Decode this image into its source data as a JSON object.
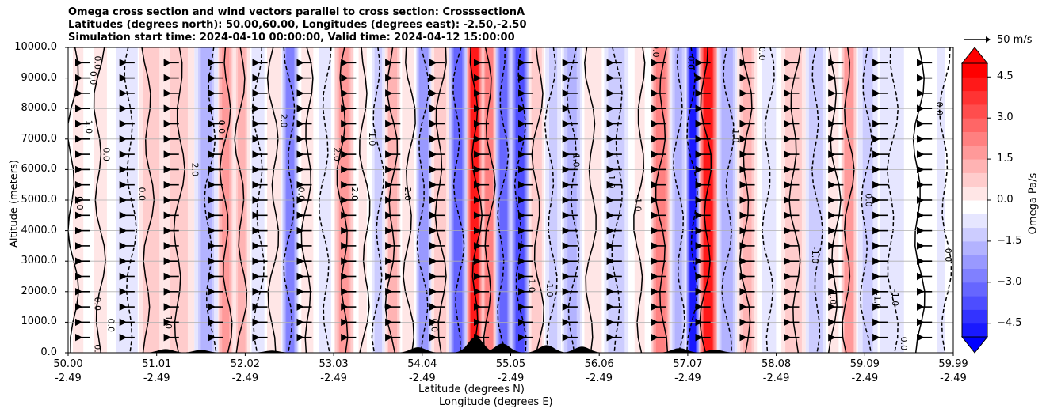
{
  "chart_data": {
    "type": "heatmap",
    "title_lines": [
      "Omega cross section and wind vectors parallel to cross section: CrosssectionA",
      "Latitudes (degrees north): 50.00,60.00, Longitudes (degrees east): -2.50,-2.50",
      "Simulation start time: 2024-04-10 00:00:00, Valid time: 2024-04-12 15:00:00"
    ],
    "ylabel": "Altitude (meters)",
    "xlabel_lat": "Latitude (degrees N)",
    "xlabel_lon": "Longitude (degrees E)",
    "ylim": [
      0,
      10000
    ],
    "yticks": [
      "0.0",
      "1000.0",
      "2000.0",
      "3000.0",
      "4000.0",
      "5000.0",
      "6000.0",
      "7000.0",
      "8000.0",
      "9000.0",
      "10000.0"
    ],
    "xticks_lat": [
      "50.00",
      "51.01",
      "52.02",
      "53.03",
      "54.04",
      "55.05",
      "56.06",
      "57.07",
      "58.08",
      "59.09",
      "59.99"
    ],
    "xticks_lon": [
      "-2.49",
      "-2.49",
      "-2.49",
      "-2.49",
      "-2.49",
      "-2.49",
      "-2.49",
      "-2.49",
      "-2.49",
      "-2.49",
      "-2.49"
    ],
    "xlim": [
      50.0,
      59.99
    ],
    "colorbar": {
      "label": "Omega Pa/s",
      "range": [
        -5.0,
        5.0
      ],
      "ticks": [
        "4.5",
        "3.0",
        "1.5",
        "0.0",
        "−1.5",
        "−3.0",
        "−4.5"
      ],
      "tick_values": [
        4.5,
        3.0,
        1.5,
        0.0,
        -1.5,
        -3.0,
        -4.5
      ],
      "levels": 20,
      "colormap": "bwr"
    },
    "quiver_key": {
      "label": "50 m/s",
      "speed": 50
    },
    "omega_columns": [
      {
        "lat": 50.05,
        "value": 0.4
      },
      {
        "lat": 50.35,
        "value": 0.3
      },
      {
        "lat": 50.7,
        "value": -0.8
      },
      {
        "lat": 50.9,
        "value": 1.2
      },
      {
        "lat": 51.25,
        "value": 1.0
      },
      {
        "lat": 51.6,
        "value": -1.5
      },
      {
        "lat": 51.78,
        "value": 2.2
      },
      {
        "lat": 51.95,
        "value": 1.5
      },
      {
        "lat": 52.15,
        "value": -0.6
      },
      {
        "lat": 52.32,
        "value": 0.8
      },
      {
        "lat": 52.5,
        "value": -2.6
      },
      {
        "lat": 52.7,
        "value": 0.5
      },
      {
        "lat": 52.9,
        "value": -0.5
      },
      {
        "lat": 53.1,
        "value": 2.0
      },
      {
        "lat": 53.35,
        "value": 0.3
      },
      {
        "lat": 53.5,
        "value": -1.2
      },
      {
        "lat": 53.65,
        "value": 1.8
      },
      {
        "lat": 53.85,
        "value": 0.6
      },
      {
        "lat": 54.0,
        "value": -2.5
      },
      {
        "lat": 54.2,
        "value": 1.4
      },
      {
        "lat": 54.4,
        "value": -3.2
      },
      {
        "lat": 54.6,
        "value": 5.0
      },
      {
        "lat": 54.75,
        "value": 3.0
      },
      {
        "lat": 54.9,
        "value": -3.5
      },
      {
        "lat": 55.1,
        "value": -4.2
      },
      {
        "lat": 55.3,
        "value": 1.2
      },
      {
        "lat": 55.45,
        "value": -0.9
      },
      {
        "lat": 55.7,
        "value": -1.6
      },
      {
        "lat": 55.9,
        "value": 0.6
      },
      {
        "lat": 56.2,
        "value": -1.4
      },
      {
        "lat": 56.45,
        "value": 0.3
      },
      {
        "lat": 56.7,
        "value": 2.8
      },
      {
        "lat": 56.9,
        "value": -1.6
      },
      {
        "lat": 57.05,
        "value": -5.0
      },
      {
        "lat": 57.2,
        "value": 5.0
      },
      {
        "lat": 57.45,
        "value": -2.0
      },
      {
        "lat": 57.65,
        "value": 1.5
      },
      {
        "lat": 57.9,
        "value": -0.4
      },
      {
        "lat": 58.2,
        "value": 1.2
      },
      {
        "lat": 58.45,
        "value": -1.3
      },
      {
        "lat": 58.65,
        "value": 0.5
      },
      {
        "lat": 58.8,
        "value": 2.4
      },
      {
        "lat": 59.0,
        "value": -1.0
      },
      {
        "lat": 59.3,
        "value": -0.7
      },
      {
        "lat": 59.6,
        "value": 0.2
      },
      {
        "lat": 59.9,
        "value": -0.3
      }
    ],
    "wind_u_ms": -25,
    "terrain_peaks": [
      {
        "lat": 51.1,
        "height_m": 120
      },
      {
        "lat": 51.5,
        "height_m": 90
      },
      {
        "lat": 52.3,
        "height_m": 70
      },
      {
        "lat": 53.95,
        "height_m": 180
      },
      {
        "lat": 54.6,
        "height_m": 520
      },
      {
        "lat": 54.9,
        "height_m": 300
      },
      {
        "lat": 55.4,
        "height_m": 250
      },
      {
        "lat": 55.8,
        "height_m": 200
      },
      {
        "lat": 56.9,
        "height_m": 150
      },
      {
        "lat": 57.3,
        "height_m": 100
      }
    ],
    "contour_labels": [
      {
        "text": "0.0",
        "lat": 50.3,
        "alt": 9500
      },
      {
        "text": "0.0",
        "lat": 50.25,
        "alt": 9000
      },
      {
        "text": "1.0",
        "lat": 50.2,
        "alt": 7400
      },
      {
        "text": "0.0",
        "lat": 50.4,
        "alt": 6500
      },
      {
        "text": "0.0",
        "lat": 50.1,
        "alt": 4900
      },
      {
        "text": "0.0",
        "lat": 50.3,
        "alt": 1600
      },
      {
        "text": "0.0",
        "lat": 50.45,
        "alt": 900
      },
      {
        "text": "0.0",
        "lat": 50.3,
        "alt": 50
      },
      {
        "text": "0.0",
        "lat": 50.8,
        "alt": 5200
      },
      {
        "text": "1.0",
        "lat": 51.1,
        "alt": 1000
      },
      {
        "text": "2.0",
        "lat": 51.4,
        "alt": 6000
      },
      {
        "text": "0.0",
        "lat": 51.7,
        "alt": 7400
      },
      {
        "text": "2.0",
        "lat": 52.4,
        "alt": 7600
      },
      {
        "text": "0.0",
        "lat": 52.6,
        "alt": 5200
      },
      {
        "text": "2.0",
        "lat": 53.0,
        "alt": 6500
      },
      {
        "text": "2.0",
        "lat": 53.2,
        "alt": 5200
      },
      {
        "text": "1.0",
        "lat": 53.4,
        "alt": 7000
      },
      {
        "text": "2.0",
        "lat": 53.8,
        "alt": 5200
      },
      {
        "text": "0.0",
        "lat": 54.1,
        "alt": 900
      },
      {
        "text": "1.0",
        "lat": 55.2,
        "alt": 2200
      },
      {
        "text": "-1.0",
        "lat": 55.4,
        "alt": 2100
      },
      {
        "text": "1.0",
        "lat": 55.7,
        "alt": 6300
      },
      {
        "text": "1.0",
        "lat": 56.1,
        "alt": 5600
      },
      {
        "text": "-1.0",
        "lat": 56.4,
        "alt": 4900
      },
      {
        "text": "0.0",
        "lat": 56.6,
        "alt": 9900
      },
      {
        "text": "0.0",
        "lat": 57.0,
        "alt": 9500
      },
      {
        "text": "1.0",
        "lat": 57.5,
        "alt": 7100
      },
      {
        "text": "0.0",
        "lat": 57.8,
        "alt": 9800
      },
      {
        "text": "-1.0",
        "lat": 58.4,
        "alt": 3200
      },
      {
        "text": "1.0",
        "lat": 58.6,
        "alt": 1800
      },
      {
        "text": "0.0",
        "lat": 59.0,
        "alt": 5000
      },
      {
        "text": "-1.0",
        "lat": 59.1,
        "alt": 1700
      },
      {
        "text": "-1.0",
        "lat": 59.3,
        "alt": 1800
      },
      {
        "text": "0.0",
        "lat": 59.9,
        "alt": 3200
      },
      {
        "text": "0.0",
        "lat": 59.8,
        "alt": 8000
      },
      {
        "text": "0.0",
        "lat": 59.4,
        "alt": 300
      }
    ]
  }
}
